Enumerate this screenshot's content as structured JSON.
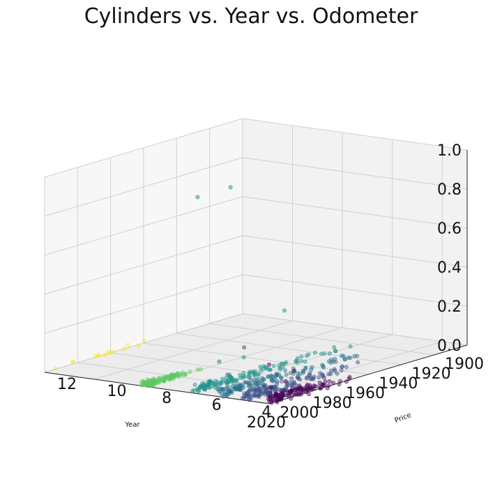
{
  "chart_data": {
    "type": "scatter",
    "title": "Cylinders vs. Year vs. Odometer",
    "xlabel": "Year",
    "ylabel": "Price",
    "zlabel": "",
    "xlim": [
      1900,
      2020
    ],
    "ylim": [
      3,
      12
    ],
    "zlim": [
      0.0,
      1.0
    ],
    "x_ticks": [
      "1900",
      "1920",
      "1940",
      "1960",
      "1980",
      "2000",
      "2020"
    ],
    "y_ticks": [
      "4",
      "6",
      "8",
      "10",
      "12"
    ],
    "z_ticks": [
      "0.0",
      "0.2",
      "0.4",
      "0.6",
      "0.8",
      "1.0"
    ],
    "colormap": [
      "#440154",
      "#3b528b",
      "#21918c",
      "#5ec962",
      "#fde725"
    ],
    "grid": true,
    "clusters": [
      {
        "price": 3,
        "color": "#440154",
        "year_range": [
          1968,
          2020
        ],
        "z_max": 0.05
      },
      {
        "price": 4,
        "color": "#3b528b",
        "year_range": [
          1945,
          2020
        ],
        "z_max": 0.05
      },
      {
        "price": 5,
        "color": "#2c728e",
        "year_range": [
          1930,
          2020
        ],
        "z_max": 0.04
      },
      {
        "price": 6,
        "color": "#21918c",
        "year_range": [
          1920,
          2020
        ],
        "z_max": 0.04
      },
      {
        "price": 8,
        "color": "#5ec962",
        "year_range": [
          1985,
          2020
        ],
        "z_max": 0.02
      },
      {
        "price": 12,
        "color": "#fde725",
        "year_range": [
          1955,
          2020
        ],
        "z_max": 0.02
      }
    ],
    "outliers": [
      {
        "x": 1998,
        "y": 6,
        "z": 1.0,
        "color": "#21918c"
      },
      {
        "x": 2018,
        "y": 6,
        "z": 1.0,
        "color": "#21918c"
      },
      {
        "x": 2020,
        "y": 4,
        "z": 0.27,
        "color": "#3b528b"
      },
      {
        "x": 2020,
        "y": 3,
        "z": 0.2,
        "color": "#440154"
      },
      {
        "x": 2020,
        "y": 5,
        "z": 0.18,
        "color": "#2c728e"
      },
      {
        "x": 2005,
        "y": 3,
        "z": 0.13,
        "color": "#440154"
      },
      {
        "x": 1920,
        "y": 9,
        "z": 0.12,
        "color": "#21918c"
      },
      {
        "x": 1990,
        "y": 6,
        "z": 0.11,
        "color": "#21918c"
      },
      {
        "x": 2015,
        "y": 5,
        "z": 0.1,
        "color": "#2c728e"
      },
      {
        "x": 2000,
        "y": 4,
        "z": 0.08,
        "color": "#3b528b"
      },
      {
        "x": 1995,
        "y": 5,
        "z": 0.09,
        "color": "#21918c"
      },
      {
        "x": 2010,
        "y": 3,
        "z": 0.09,
        "color": "#440154"
      },
      {
        "x": 2019,
        "y": 3,
        "z": 0.08,
        "color": "#440154"
      },
      {
        "x": 2019,
        "y": 4,
        "z": 0.09,
        "color": "#3b528b"
      }
    ]
  }
}
